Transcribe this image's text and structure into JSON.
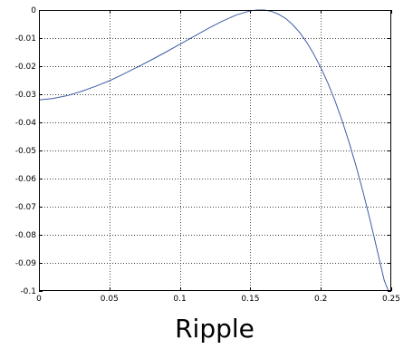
{
  "chart_data": {
    "type": "line",
    "title": "",
    "xlabel": "",
    "ylabel": "",
    "caption": "Ripple",
    "xlim": [
      0,
      0.25
    ],
    "ylim": [
      -0.1,
      0
    ],
    "x_ticks": [
      0,
      0.05,
      0.1,
      0.15,
      0.2,
      0.25
    ],
    "x_tick_labels": [
      "0",
      "0.05",
      "0.1",
      "0.15",
      "0.2",
      "0.25"
    ],
    "y_ticks": [
      0,
      -0.01,
      -0.02,
      -0.03,
      -0.04,
      -0.05,
      -0.06,
      -0.07,
      -0.08,
      -0.09,
      -0.1
    ],
    "y_tick_labels": [
      "0",
      "-0.01",
      "-0.02",
      "-0.03",
      "-0.04",
      "-0.05",
      "-0.06",
      "-0.07",
      "-0.08",
      "-0.09",
      "-0.1"
    ],
    "grid": true,
    "grid_style": "dotted",
    "series": [
      {
        "color": "#3d5ea6",
        "x": [
          0,
          0.01,
          0.02,
          0.03,
          0.04,
          0.05,
          0.06,
          0.07,
          0.08,
          0.09,
          0.1,
          0.11,
          0.12,
          0.13,
          0.14,
          0.15,
          0.155,
          0.16,
          0.165,
          0.17,
          0.175,
          0.18,
          0.185,
          0.19,
          0.195,
          0.2,
          0.205,
          0.21,
          0.215,
          0.22,
          0.225,
          0.23,
          0.235,
          0.24,
          0.245,
          0.248
        ],
        "y": [
          -0.032,
          -0.0315,
          -0.0305,
          -0.029,
          -0.0272,
          -0.0252,
          -0.0228,
          -0.0203,
          -0.0177,
          -0.015,
          -0.0122,
          -0.0094,
          -0.0066,
          -0.004,
          -0.0018,
          -0.0003,
          0,
          0,
          -0.0005,
          -0.0015,
          -0.003,
          -0.0052,
          -0.008,
          -0.0115,
          -0.0157,
          -0.0205,
          -0.026,
          -0.0322,
          -0.0392,
          -0.047,
          -0.0555,
          -0.0648,
          -0.0748,
          -0.0855,
          -0.0962,
          -0.1
        ]
      }
    ]
  }
}
